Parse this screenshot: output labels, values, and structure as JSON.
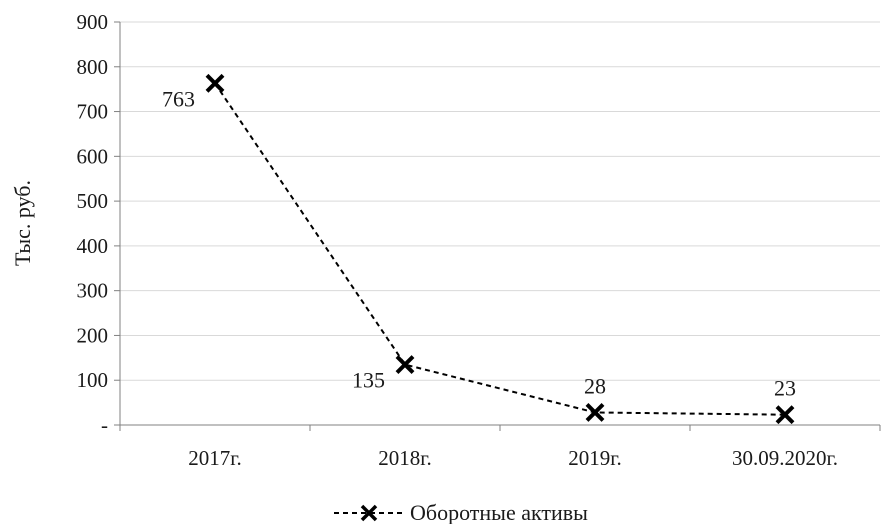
{
  "chart_data": {
    "type": "line",
    "title": "",
    "xlabel": "",
    "ylabel": "Тыс. руб.",
    "ylim": [
      0,
      900
    ],
    "y_ticks": [
      {
        "value": 0,
        "label": "-"
      },
      {
        "value": 100,
        "label": "100"
      },
      {
        "value": 200,
        "label": "200"
      },
      {
        "value": 300,
        "label": "300"
      },
      {
        "value": 400,
        "label": "400"
      },
      {
        "value": 500,
        "label": "500"
      },
      {
        "value": 600,
        "label": "600"
      },
      {
        "value": 700,
        "label": "700"
      },
      {
        "value": 800,
        "label": "800"
      },
      {
        "value": 900,
        "label": "900"
      }
    ],
    "categories": [
      "2017г.",
      "2018г.",
      "2019г.",
      "30.09.2020г."
    ],
    "series": [
      {
        "name": "Оборотные активы",
        "values": [
          763,
          135,
          28,
          23
        ],
        "data_labels": [
          "763",
          "135",
          "28",
          "23"
        ],
        "line_style": "dashed",
        "marker": "x",
        "color": "#000000"
      }
    ],
    "grid": "horizontal",
    "legend_position": "bottom"
  }
}
